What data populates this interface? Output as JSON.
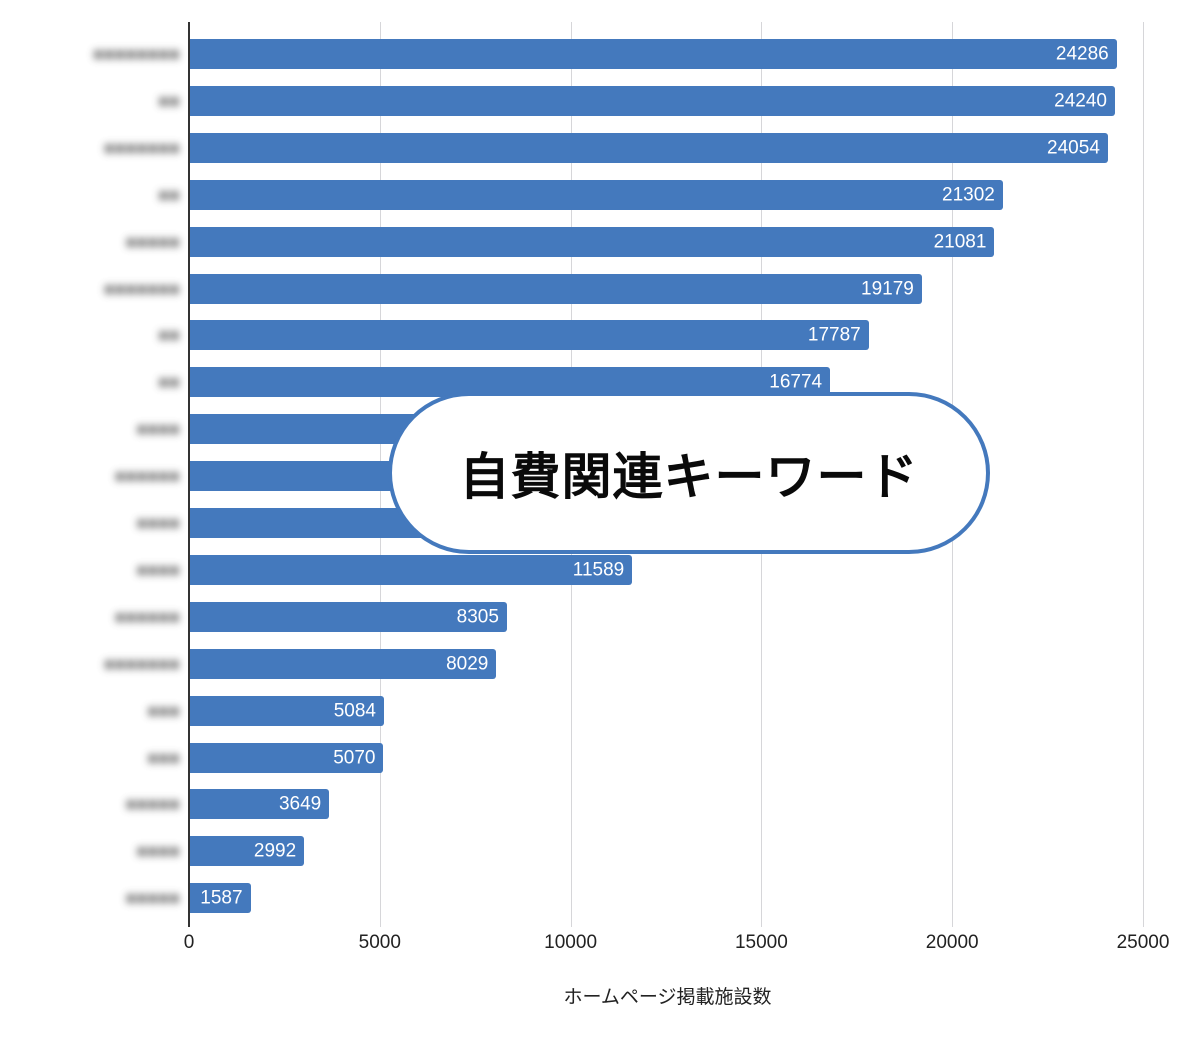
{
  "chart_data": {
    "type": "bar",
    "orientation": "horizontal",
    "title": "",
    "xlabel": "ホームページ掲載施設数",
    "ylabel": "",
    "xlim": [
      0,
      25000
    ],
    "x_ticks": [
      "0",
      "5000",
      "10000",
      "15000",
      "20000",
      "25000"
    ],
    "grid": true,
    "legend": null,
    "categories_note": "Category labels are blurred/obscured in the image",
    "categories": [
      "",
      "",
      "",
      "",
      "",
      "",
      "",
      "",
      "",
      "",
      "",
      "",
      "",
      "",
      "",
      "",
      "",
      "",
      ""
    ],
    "values": [
      24286,
      24240,
      24054,
      21302,
      21081,
      19179,
      17787,
      16774,
      null,
      null,
      null,
      11589,
      8305,
      8029,
      5084,
      5070,
      3649,
      2992,
      1587
    ],
    "value_labels": [
      "24286",
      "24240",
      "24054",
      "21302",
      "21081",
      "19179",
      "17787",
      "16774",
      "",
      "",
      "",
      "11589",
      "8305",
      "8029",
      "5084",
      "5070",
      "3649",
      "2992",
      "1587"
    ],
    "bar_color": "#4479bd",
    "annotations": [
      {
        "type": "callout",
        "text": "自費関連キーワード",
        "covers_rows": [
          8,
          9,
          10
        ]
      }
    ]
  },
  "overlay": {
    "text": "自費関連キーワード",
    "border_color": "#4479bd"
  },
  "axis": {
    "x_title": "ホームページ掲載施設数",
    "ticks": [
      "0",
      "5000",
      "10000",
      "15000",
      "20000",
      "25000"
    ]
  },
  "bars": [
    {
      "label": "24286",
      "value": 24286
    },
    {
      "label": "24240",
      "value": 24240
    },
    {
      "label": "24054",
      "value": 24054
    },
    {
      "label": "21302",
      "value": 21302
    },
    {
      "label": "21081",
      "value": 21081
    },
    {
      "label": "19179",
      "value": 19179
    },
    {
      "label": "17787",
      "value": 17787
    },
    {
      "label": "16774",
      "value": 16774
    },
    {
      "label": "",
      "value": 15500
    },
    {
      "label": "",
      "value": 14500
    },
    {
      "label": "",
      "value": 13000
    },
    {
      "label": "11589",
      "value": 11589
    },
    {
      "label": "8305",
      "value": 8305
    },
    {
      "label": "8029",
      "value": 8029
    },
    {
      "label": "5084",
      "value": 5084
    },
    {
      "label": "5070",
      "value": 5070
    },
    {
      "label": "3649",
      "value": 3649
    },
    {
      "label": "2992",
      "value": 2992
    },
    {
      "label": "1587",
      "value": 1587
    }
  ],
  "blurred_labels": [
    "■■■■■■■■",
    "■■",
    "■■■■■■■",
    "■■",
    "■■■■■",
    "■■■■■■■",
    "■■",
    "■■",
    "■■■■",
    "■■■■■■",
    "■■■■",
    "■■■■",
    "■■■■■■",
    "■■■■■■■",
    "■■■",
    "■■■",
    "■■■■■",
    "■■■■",
    "■■■■■"
  ]
}
